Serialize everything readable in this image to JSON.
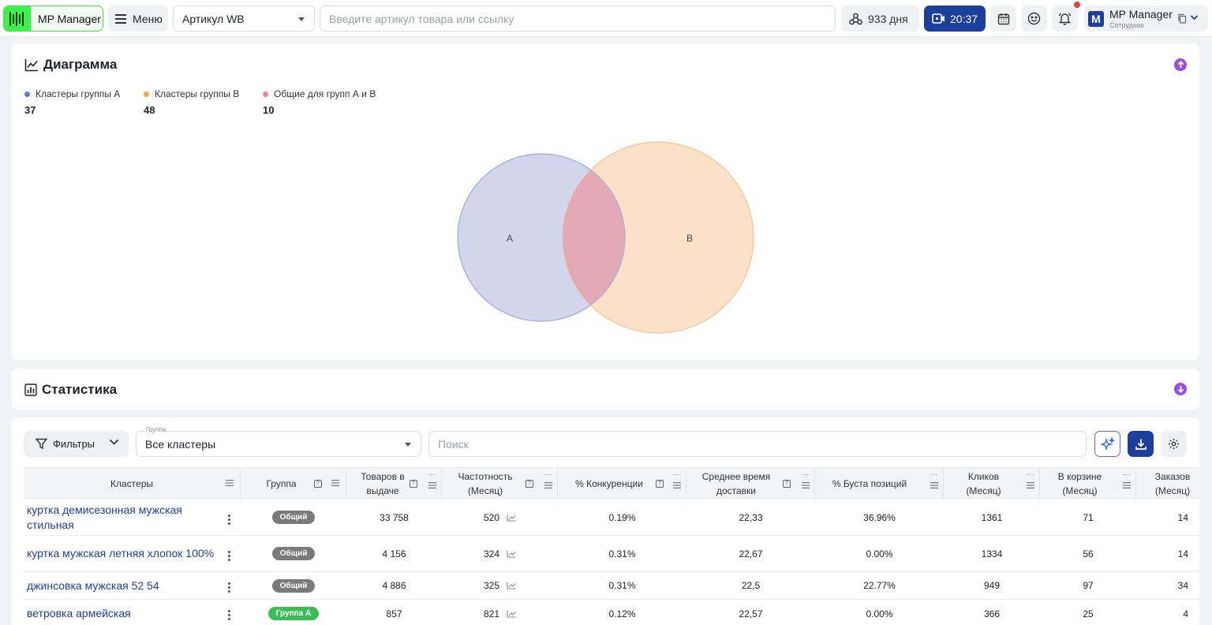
{
  "topbar": {
    "app_name": "MP Manager",
    "menu_label": "Меню",
    "article_select_value": "Артикул WB",
    "search_placeholder": "Введите артикул товара или ссылку",
    "days_label": "933 дня",
    "time_label": "20:37",
    "profile_name": "MP Manager",
    "profile_role": "Сотрудник",
    "profile_logo_letter": "M"
  },
  "diagram": {
    "title": "Диаграмма",
    "legend": [
      {
        "label": "Кластеры группы А",
        "count": "37",
        "color": "#6b78c4"
      },
      {
        "label": "Кластеры группы В",
        "count": "48",
        "color": "#f5a34c"
      },
      {
        "label": "Общие для групп А и В",
        "count": "10",
        "color": "#ef7f9c"
      }
    ],
    "venn": {
      "label_a": "A",
      "label_b": "B",
      "color_a": "#c9cfe9",
      "color_b": "#fcdcc0",
      "color_overlap": "#e3a9b4"
    }
  },
  "statistics": {
    "title": "Статистика"
  },
  "controls": {
    "filters_label": "Фильтры",
    "group_floating_label": "Группа",
    "group_value": "Все кластеры",
    "search_placeholder": "Поиск"
  },
  "table": {
    "headers": {
      "cluster": "Кластеры",
      "group": "Группа",
      "products": "Товаров в выдаче",
      "frequency": "Частотность (Месяц)",
      "competition": "% Конкуренции",
      "delivery": "Среднее время доставки",
      "boost": "% Буста позиций",
      "clicks": "Кликов (Месяц)",
      "cart": "В корзине (Месяц)",
      "orders": "Заказов (Месяц)"
    },
    "rows": [
      {
        "cluster": "куртка демисезонная мужская стильная",
        "group": "Общий",
        "products": "33 758",
        "frequency": "520",
        "competition": "0.19%",
        "delivery": "22,33",
        "boost": "36.96%",
        "clicks": "1361",
        "cart": "71",
        "orders": "14"
      },
      {
        "cluster": "куртка мужская летняя хлопок 100%",
        "group": "Общий",
        "products": "4 156",
        "frequency": "324",
        "competition": "0.31%",
        "delivery": "22,67",
        "boost": "0.00%",
        "clicks": "1334",
        "cart": "56",
        "orders": "14"
      },
      {
        "cluster": "джинсовка мужская 52 54",
        "group": "Общий",
        "products": "4 886",
        "frequency": "325",
        "competition": "0.31%",
        "delivery": "22,5",
        "boost": "22.77%",
        "clicks": "949",
        "cart": "97",
        "orders": "34"
      },
      {
        "cluster": "ветровка армейская",
        "group": "Группа А",
        "products": "857",
        "frequency": "821",
        "competition": "0.12%",
        "delivery": "22,57",
        "boost": "0.00%",
        "clicks": "366",
        "cart": "25",
        "orders": "4"
      }
    ]
  }
}
